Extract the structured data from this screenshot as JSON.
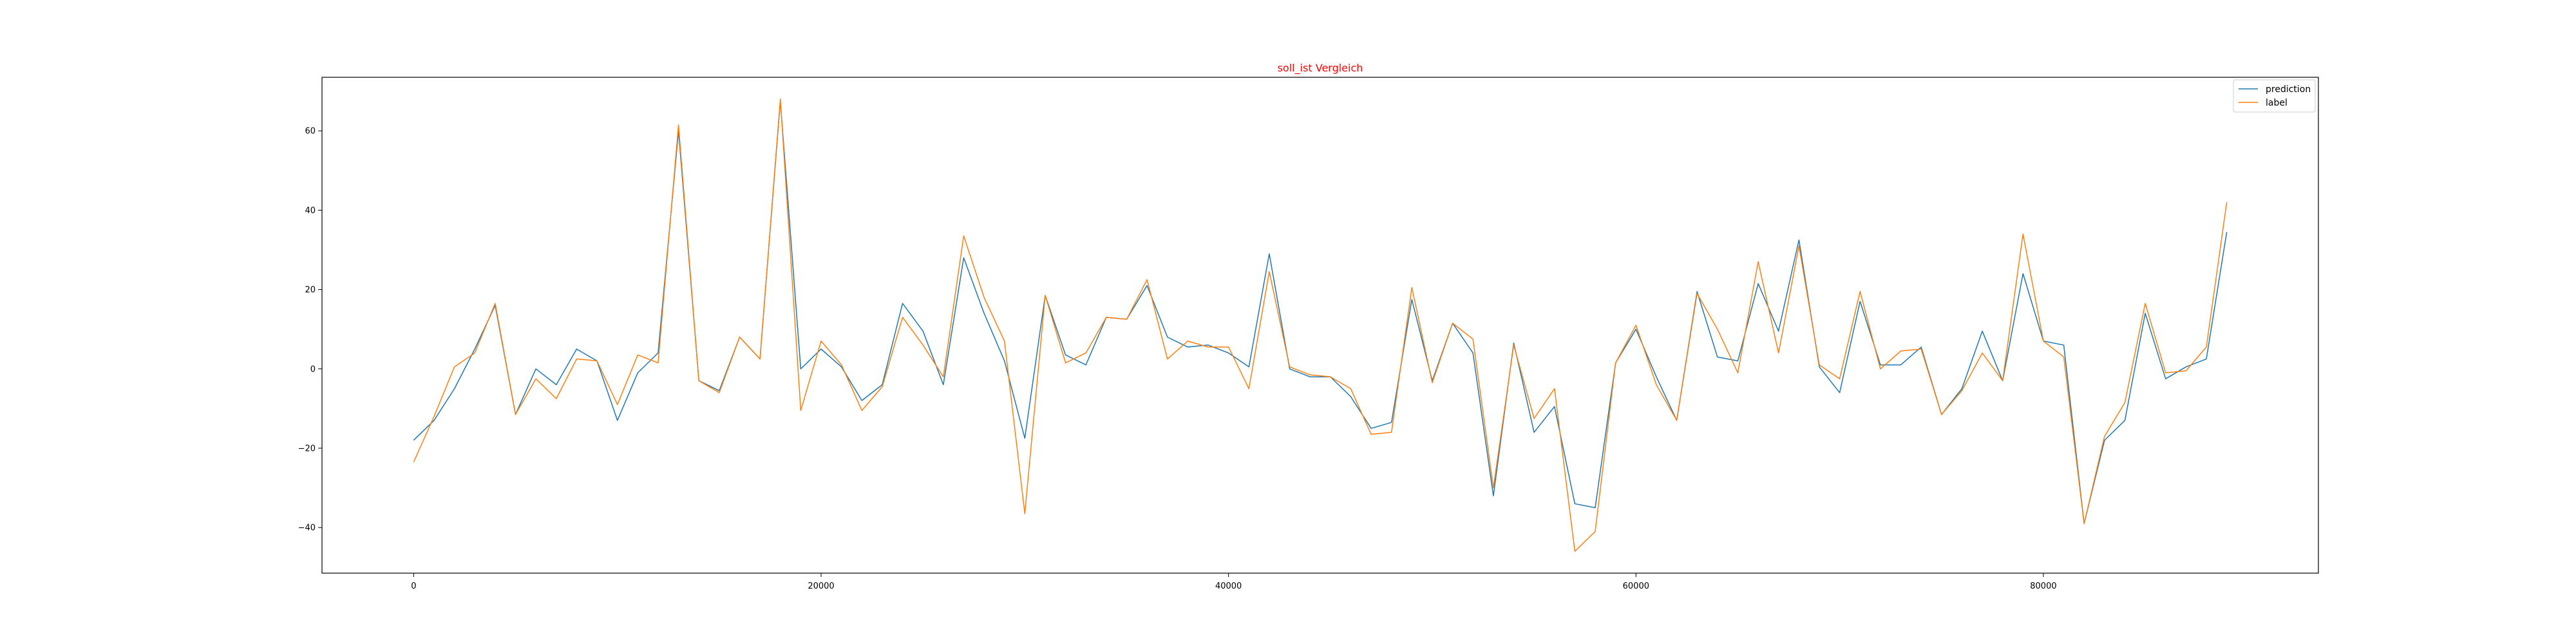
{
  "chart_data": {
    "type": "line",
    "title": "soll_ist Vergleich",
    "title_color": "#ff0000",
    "xlabel": "",
    "ylabel": "",
    "xlim": [
      -4500,
      93500
    ],
    "ylim": [
      -51.5,
      73.5
    ],
    "xticks": [
      0,
      20000,
      40000,
      60000,
      80000
    ],
    "xtick_labels": [
      "0",
      "20000",
      "40000",
      "60000",
      "80000"
    ],
    "yticks": [
      -40,
      -20,
      0,
      20,
      40,
      60
    ],
    "ytick_labels": [
      "−40",
      "−20",
      "0",
      "20",
      "40",
      "60"
    ],
    "grid": false,
    "legend_position": "top-right",
    "x": [
      0,
      1000,
      2000,
      3000,
      4000,
      5000,
      6000,
      7000,
      8000,
      9000,
      10000,
      11000,
      12000,
      13000,
      14000,
      15000,
      16000,
      17000,
      18000,
      19000,
      20000,
      21000,
      22000,
      23000,
      24000,
      25000,
      26000,
      27000,
      28000,
      29000,
      30000,
      31000,
      32000,
      33000,
      34000,
      35000,
      36000,
      37000,
      38000,
      39000,
      40000,
      41000,
      42000,
      43000,
      44000,
      45000,
      46000,
      47000,
      48000,
      49000,
      50000,
      51000,
      52000,
      53000,
      54000,
      55000,
      56000,
      57000,
      58000,
      59000,
      60000,
      61000,
      62000,
      63000,
      64000,
      65000,
      66000,
      67000,
      68000,
      69000,
      70000,
      71000,
      72000,
      73000,
      74000,
      75000,
      76000,
      77000,
      78000,
      79000,
      80000,
      81000,
      82000,
      83000,
      84000,
      85000,
      86000,
      87000,
      88000,
      89000
    ],
    "series": [
      {
        "name": "prediction",
        "color": "#1f77b4",
        "values": [
          -18,
          -13,
          -5,
          5,
          16,
          -11.5,
          0,
          -4,
          5,
          2,
          -13,
          -1,
          4,
          60,
          -3,
          -5.5,
          8,
          2.5,
          67.5,
          0,
          5,
          0.5,
          -8,
          -4,
          16.5,
          9.5,
          -4,
          28,
          14,
          2,
          -17.5,
          18.5,
          3.5,
          1,
          13,
          12.5,
          21,
          8,
          5.5,
          6,
          4,
          0.5,
          29,
          0,
          -2,
          -2,
          -7,
          -15,
          -13.5,
          17.5,
          -3,
          11.5,
          4,
          -32,
          6.5,
          -16,
          -9.5,
          -34,
          -35,
          1.5,
          10,
          -2,
          -13,
          19.5,
          3,
          2,
          21.5,
          9.5,
          32.5,
          0.5,
          -6,
          17,
          1,
          1,
          5.5,
          -11.5,
          -5,
          9.5,
          -3,
          24,
          7,
          6,
          -39,
          -18,
          -13,
          14,
          -2.5,
          0.5,
          2.5,
          34.5
        ]
      },
      {
        "name": "label",
        "color": "#ff7f0e",
        "values": [
          -23.5,
          -12,
          0.5,
          4,
          16.5,
          -11.5,
          -2.5,
          -7.5,
          2.5,
          2,
          -9,
          3.5,
          1.5,
          61.5,
          -3,
          -6,
          8,
          2.5,
          68,
          -10.5,
          7,
          1,
          -10.5,
          -4.5,
          13,
          6,
          -2,
          33.5,
          18,
          7,
          -36.5,
          18.5,
          1.5,
          4,
          13,
          12.5,
          22.5,
          2.5,
          7,
          5.5,
          5.5,
          -5,
          24.5,
          0.5,
          -1.5,
          -2,
          -5,
          -16.5,
          -16,
          20.5,
          -3.5,
          11.5,
          7.5,
          -30,
          6,
          -12.5,
          -5,
          -46,
          -41,
          1.5,
          11,
          -4,
          -13,
          19,
          10,
          -1,
          27,
          4,
          31,
          1,
          -2.5,
          19.5,
          0,
          4.5,
          5,
          -11.5,
          -5.5,
          4,
          -3,
          34,
          7,
          3,
          -39,
          -17,
          -8.5,
          16.5,
          -1,
          -0.5,
          5.5,
          42
        ]
      }
    ]
  }
}
